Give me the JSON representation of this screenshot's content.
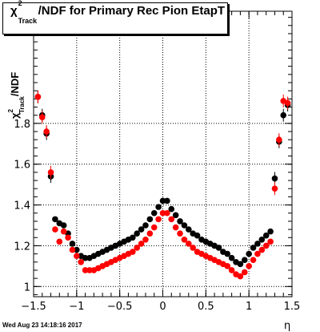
{
  "chart_data": {
    "type": "scatter",
    "title": {
      "prefix": "χ",
      "sup": "2",
      "sub": "Track",
      "suffix": "/NDF for Primary Rec Pion EtapT"
    },
    "ylabel": {
      "prefix": "χ",
      "sup": "2",
      "sub": "Track",
      "suffix": "/NDF"
    },
    "xlabel": "η",
    "xlim": [
      -1.5,
      1.5
    ],
    "ylim": [
      0.95,
      2.35
    ],
    "x_ticks": [
      "−1.5",
      "−1",
      "−0.5",
      "0",
      "0.5",
      "1",
      "1.5"
    ],
    "y_ticks": [
      "1",
      "1.2",
      "1.4",
      "1.6",
      "1.8"
    ],
    "grid": true,
    "series": [
      {
        "color": "#000000",
        "points": [
          [
            -1.45,
            1.93
          ],
          [
            -1.4,
            1.84
          ],
          [
            -1.35,
            1.75
          ],
          [
            -1.3,
            1.54
          ],
          [
            -1.25,
            1.33
          ],
          [
            -1.2,
            1.31
          ],
          [
            -1.15,
            1.3
          ],
          [
            -1.1,
            1.26
          ],
          [
            -1.05,
            1.21
          ],
          [
            -1.0,
            1.18
          ],
          [
            -0.95,
            1.15
          ],
          [
            -0.9,
            1.14
          ],
          [
            -0.85,
            1.14
          ],
          [
            -0.8,
            1.15
          ],
          [
            -0.75,
            1.16
          ],
          [
            -0.7,
            1.17
          ],
          [
            -0.65,
            1.18
          ],
          [
            -0.6,
            1.19
          ],
          [
            -0.55,
            1.2
          ],
          [
            -0.5,
            1.21
          ],
          [
            -0.45,
            1.22
          ],
          [
            -0.4,
            1.23
          ],
          [
            -0.35,
            1.24
          ],
          [
            -0.3,
            1.26
          ],
          [
            -0.25,
            1.28
          ],
          [
            -0.2,
            1.3
          ],
          [
            -0.15,
            1.33
          ],
          [
            -0.1,
            1.36
          ],
          [
            -0.05,
            1.39
          ],
          [
            0.0,
            1.42
          ],
          [
            0.05,
            1.42
          ],
          [
            0.1,
            1.38
          ],
          [
            0.15,
            1.35
          ],
          [
            0.2,
            1.32
          ],
          [
            0.25,
            1.3
          ],
          [
            0.3,
            1.28
          ],
          [
            0.35,
            1.26
          ],
          [
            0.4,
            1.25
          ],
          [
            0.45,
            1.23
          ],
          [
            0.5,
            1.22
          ],
          [
            0.55,
            1.21
          ],
          [
            0.6,
            1.2
          ],
          [
            0.65,
            1.19
          ],
          [
            0.7,
            1.17
          ],
          [
            0.75,
            1.16
          ],
          [
            0.8,
            1.14
          ],
          [
            0.85,
            1.12
          ],
          [
            0.9,
            1.11
          ],
          [
            0.95,
            1.13
          ],
          [
            1.0,
            1.16
          ],
          [
            1.05,
            1.19
          ],
          [
            1.1,
            1.21
          ],
          [
            1.15,
            1.23
          ],
          [
            1.2,
            1.25
          ],
          [
            1.25,
            1.27
          ],
          [
            1.3,
            1.53
          ],
          [
            1.35,
            1.71
          ],
          [
            1.4,
            1.84
          ],
          [
            1.45,
            1.89
          ]
        ]
      },
      {
        "color": "#ff0000",
        "points": [
          [
            -1.45,
            1.93
          ],
          [
            -1.4,
            1.83
          ],
          [
            -1.35,
            1.76
          ],
          [
            -1.3,
            1.56
          ],
          [
            -1.25,
            1.28
          ],
          [
            -1.2,
            1.22
          ],
          [
            -1.15,
            1.27
          ],
          [
            -1.1,
            1.24
          ],
          [
            -1.05,
            1.18
          ],
          [
            -1.0,
            1.15
          ],
          [
            -0.95,
            1.12
          ],
          [
            -0.9,
            1.08
          ],
          [
            -0.85,
            1.08
          ],
          [
            -0.8,
            1.08
          ],
          [
            -0.75,
            1.09
          ],
          [
            -0.7,
            1.1
          ],
          [
            -0.65,
            1.11
          ],
          [
            -0.6,
            1.12
          ],
          [
            -0.55,
            1.13
          ],
          [
            -0.5,
            1.14
          ],
          [
            -0.45,
            1.15
          ],
          [
            -0.4,
            1.16
          ],
          [
            -0.35,
            1.17
          ],
          [
            -0.3,
            1.19
          ],
          [
            -0.25,
            1.21
          ],
          [
            -0.2,
            1.23
          ],
          [
            -0.15,
            1.26
          ],
          [
            -0.1,
            1.29
          ],
          [
            -0.05,
            1.33
          ],
          [
            0.0,
            1.36
          ],
          [
            0.05,
            1.36
          ],
          [
            0.1,
            1.33
          ],
          [
            0.15,
            1.29
          ],
          [
            0.2,
            1.26
          ],
          [
            0.25,
            1.23
          ],
          [
            0.3,
            1.21
          ],
          [
            0.35,
            1.19
          ],
          [
            0.4,
            1.17
          ],
          [
            0.45,
            1.16
          ],
          [
            0.5,
            1.15
          ],
          [
            0.55,
            1.14
          ],
          [
            0.6,
            1.13
          ],
          [
            0.65,
            1.12
          ],
          [
            0.7,
            1.11
          ],
          [
            0.75,
            1.1
          ],
          [
            0.8,
            1.08
          ],
          [
            0.85,
            1.06
          ],
          [
            0.9,
            1.05
          ],
          [
            0.95,
            1.07
          ],
          [
            1.0,
            1.1
          ],
          [
            1.05,
            1.13
          ],
          [
            1.1,
            1.16
          ],
          [
            1.15,
            1.18
          ],
          [
            1.2,
            1.2
          ],
          [
            1.25,
            1.22
          ],
          [
            1.3,
            1.48
          ],
          [
            1.35,
            1.72
          ],
          [
            1.4,
            1.91
          ],
          [
            1.45,
            1.9
          ]
        ]
      }
    ]
  },
  "footer": {
    "timestamp": "Wed Aug 23 14:18:16 2017"
  }
}
